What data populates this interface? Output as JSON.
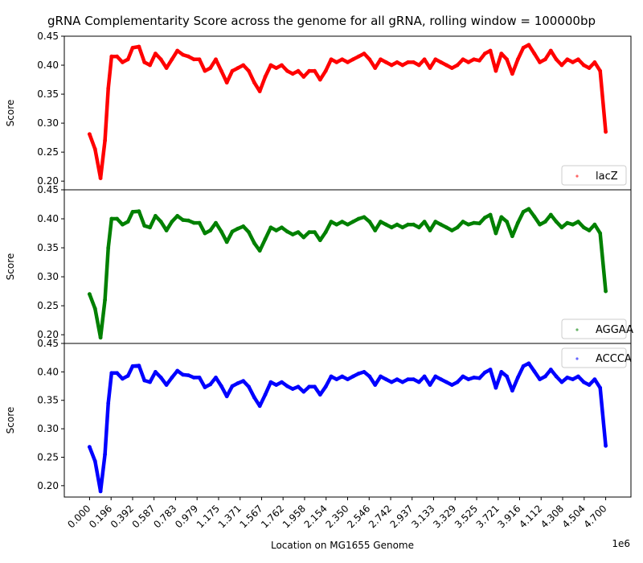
{
  "chart_data": {
    "type": "scatter",
    "title": "gRNA Complementarity Score across the genome for all gRNA, rolling window = 100000bp",
    "xlabel": "Location on MG1655 Genome",
    "x_offset_text": "1e6",
    "xlim": [
      -0.23,
      4.93
    ],
    "xticks": [
      0.0,
      0.196,
      0.392,
      0.587,
      0.783,
      0.979,
      1.175,
      1.371,
      1.567,
      1.762,
      1.958,
      2.154,
      2.35,
      2.546,
      2.742,
      2.937,
      3.133,
      3.329,
      3.525,
      3.721,
      3.916,
      4.112,
      4.308,
      4.504,
      4.7
    ],
    "xtick_labels": [
      "0.000",
      "0.196",
      "0.392",
      "0.587",
      "0.783",
      "0.979",
      "1.175",
      "1.371",
      "1.567",
      "1.762",
      "1.958",
      "2.154",
      "2.350",
      "2.546",
      "2.742",
      "2.937",
      "3.133",
      "3.329",
      "3.525",
      "3.721",
      "3.916",
      "4.112",
      "4.308",
      "4.504",
      "4.700"
    ],
    "grid": false,
    "panels": [
      {
        "ylabel": "Score",
        "ylim": [
          0.185,
          0.45
        ],
        "yticks": [
          0.2,
          0.25,
          0.3,
          0.35,
          0.4,
          0.45
        ],
        "ytick_labels": [
          "0.20",
          "0.25",
          "0.30",
          "0.35",
          "0.40",
          "0.45"
        ],
        "legend_loc": "lower-right",
        "series": [
          {
            "name": "lacZ",
            "color": "#ff0000",
            "x": [
              0.0,
              0.05,
              0.1,
              0.14,
              0.17,
              0.2,
              0.25,
              0.3,
              0.35,
              0.392,
              0.45,
              0.5,
              0.55,
              0.6,
              0.65,
              0.7,
              0.75,
              0.8,
              0.85,
              0.9,
              0.95,
              1.0,
              1.05,
              1.1,
              1.15,
              1.2,
              1.25,
              1.3,
              1.35,
              1.4,
              1.45,
              1.5,
              1.55,
              1.6,
              1.65,
              1.7,
              1.75,
              1.8,
              1.85,
              1.9,
              1.95,
              2.0,
              2.05,
              2.1,
              2.15,
              2.2,
              2.25,
              2.3,
              2.35,
              2.4,
              2.45,
              2.5,
              2.55,
              2.6,
              2.65,
              2.7,
              2.75,
              2.8,
              2.85,
              2.9,
              2.95,
              3.0,
              3.05,
              3.1,
              3.15,
              3.2,
              3.25,
              3.3,
              3.35,
              3.4,
              3.45,
              3.5,
              3.55,
              3.6,
              3.65,
              3.7,
              3.75,
              3.8,
              3.85,
              3.9,
              3.95,
              4.0,
              4.05,
              4.1,
              4.15,
              4.2,
              4.25,
              4.3,
              4.35,
              4.4,
              4.45,
              4.5,
              4.55,
              4.6,
              4.65,
              4.7
            ],
            "y": [
              0.281,
              0.255,
              0.205,
              0.27,
              0.36,
              0.415,
              0.415,
              0.405,
              0.41,
              0.43,
              0.432,
              0.405,
              0.4,
              0.42,
              0.41,
              0.395,
              0.41,
              0.425,
              0.418,
              0.415,
              0.41,
              0.41,
              0.39,
              0.395,
              0.41,
              0.39,
              0.37,
              0.39,
              0.395,
              0.4,
              0.39,
              0.37,
              0.355,
              0.38,
              0.4,
              0.395,
              0.4,
              0.39,
              0.385,
              0.39,
              0.38,
              0.39,
              0.39,
              0.375,
              0.39,
              0.41,
              0.405,
              0.41,
              0.405,
              0.41,
              0.415,
              0.42,
              0.41,
              0.395,
              0.41,
              0.405,
              0.4,
              0.405,
              0.4,
              0.405,
              0.405,
              0.4,
              0.41,
              0.395,
              0.41,
              0.405,
              0.4,
              0.395,
              0.4,
              0.41,
              0.405,
              0.41,
              0.408,
              0.42,
              0.425,
              0.39,
              0.42,
              0.41,
              0.385,
              0.41,
              0.43,
              0.435,
              0.42,
              0.405,
              0.41,
              0.425,
              0.41,
              0.4,
              0.41,
              0.405,
              0.41,
              0.4,
              0.395,
              0.405,
              0.39,
              0.285
            ]
          }
        ]
      },
      {
        "ylabel": "Score",
        "ylim": [
          0.185,
          0.45
        ],
        "yticks": [
          0.2,
          0.25,
          0.3,
          0.35,
          0.4,
          0.45
        ],
        "ytick_labels": [
          "0.20",
          "0.25",
          "0.30",
          "0.35",
          "0.40",
          "0.45"
        ],
        "legend_loc": "lower-right",
        "series": [
          {
            "name": "AGGAA",
            "color": "#008000",
            "x": [
              0.0,
              0.05,
              0.1,
              0.14,
              0.17,
              0.2,
              0.25,
              0.3,
              0.35,
              0.392,
              0.45,
              0.5,
              0.55,
              0.6,
              0.65,
              0.7,
              0.75,
              0.8,
              0.85,
              0.9,
              0.95,
              1.0,
              1.05,
              1.1,
              1.15,
              1.2,
              1.25,
              1.3,
              1.35,
              1.4,
              1.45,
              1.5,
              1.55,
              1.6,
              1.65,
              1.7,
              1.75,
              1.8,
              1.85,
              1.9,
              1.95,
              2.0,
              2.05,
              2.1,
              2.15,
              2.2,
              2.25,
              2.3,
              2.35,
              2.4,
              2.45,
              2.5,
              2.55,
              2.6,
              2.65,
              2.7,
              2.75,
              2.8,
              2.85,
              2.9,
              2.95,
              3.0,
              3.05,
              3.1,
              3.15,
              3.2,
              3.25,
              3.3,
              3.35,
              3.4,
              3.45,
              3.5,
              3.55,
              3.6,
              3.65,
              3.7,
              3.75,
              3.8,
              3.85,
              3.9,
              3.95,
              4.0,
              4.05,
              4.1,
              4.15,
              4.2,
              4.25,
              4.3,
              4.35,
              4.4,
              4.45,
              4.5,
              4.55,
              4.6,
              4.65,
              4.7
            ],
            "y": [
              0.27,
              0.245,
              0.195,
              0.26,
              0.35,
              0.4,
              0.4,
              0.39,
              0.395,
              0.412,
              0.413,
              0.388,
              0.385,
              0.405,
              0.395,
              0.38,
              0.395,
              0.405,
              0.398,
              0.397,
              0.393,
              0.393,
              0.375,
              0.38,
              0.393,
              0.378,
              0.36,
              0.378,
              0.383,
              0.387,
              0.377,
              0.358,
              0.345,
              0.365,
              0.385,
              0.38,
              0.385,
              0.378,
              0.373,
              0.377,
              0.368,
              0.377,
              0.377,
              0.363,
              0.377,
              0.395,
              0.39,
              0.395,
              0.39,
              0.395,
              0.4,
              0.403,
              0.395,
              0.38,
              0.395,
              0.39,
              0.385,
              0.39,
              0.385,
              0.39,
              0.39,
              0.385,
              0.395,
              0.38,
              0.395,
              0.39,
              0.385,
              0.38,
              0.385,
              0.395,
              0.39,
              0.393,
              0.392,
              0.402,
              0.407,
              0.375,
              0.403,
              0.395,
              0.37,
              0.393,
              0.412,
              0.417,
              0.404,
              0.39,
              0.395,
              0.407,
              0.395,
              0.385,
              0.393,
              0.39,
              0.395,
              0.385,
              0.38,
              0.39,
              0.375,
              0.275
            ]
          }
        ]
      },
      {
        "ylabel": "Score",
        "ylim": [
          0.18,
          0.45
        ],
        "yticks": [
          0.2,
          0.25,
          0.3,
          0.35,
          0.4,
          0.45
        ],
        "ytick_labels": [
          "0.20",
          "0.25",
          "0.30",
          "0.35",
          "0.40",
          "0.45"
        ],
        "legend_loc": "upper-right",
        "series": [
          {
            "name": "ACCCA",
            "color": "#0000ff",
            "x": [
              0.0,
              0.05,
              0.1,
              0.14,
              0.17,
              0.2,
              0.25,
              0.3,
              0.35,
              0.392,
              0.45,
              0.5,
              0.55,
              0.6,
              0.65,
              0.7,
              0.75,
              0.8,
              0.85,
              0.9,
              0.95,
              1.0,
              1.05,
              1.1,
              1.15,
              1.2,
              1.25,
              1.3,
              1.35,
              1.4,
              1.45,
              1.5,
              1.55,
              1.6,
              1.65,
              1.7,
              1.75,
              1.8,
              1.85,
              1.9,
              1.95,
              2.0,
              2.05,
              2.1,
              2.15,
              2.2,
              2.25,
              2.3,
              2.35,
              2.4,
              2.45,
              2.5,
              2.55,
              2.6,
              2.65,
              2.7,
              2.75,
              2.8,
              2.85,
              2.9,
              2.95,
              3.0,
              3.05,
              3.1,
              3.15,
              3.2,
              3.25,
              3.3,
              3.35,
              3.4,
              3.45,
              3.5,
              3.55,
              3.6,
              3.65,
              3.7,
              3.75,
              3.8,
              3.85,
              3.9,
              3.95,
              4.0,
              4.05,
              4.1,
              4.15,
              4.2,
              4.25,
              4.3,
              4.35,
              4.4,
              4.45,
              4.5,
              4.55,
              4.6,
              4.65,
              4.7
            ],
            "y": [
              0.268,
              0.243,
              0.19,
              0.255,
              0.345,
              0.398,
              0.398,
              0.388,
              0.393,
              0.41,
              0.411,
              0.385,
              0.382,
              0.4,
              0.39,
              0.377,
              0.39,
              0.402,
              0.395,
              0.394,
              0.39,
              0.39,
              0.373,
              0.378,
              0.39,
              0.375,
              0.357,
              0.375,
              0.38,
              0.384,
              0.374,
              0.355,
              0.34,
              0.36,
              0.382,
              0.377,
              0.382,
              0.375,
              0.37,
              0.374,
              0.365,
              0.374,
              0.374,
              0.36,
              0.374,
              0.392,
              0.387,
              0.392,
              0.387,
              0.392,
              0.397,
              0.4,
              0.392,
              0.377,
              0.392,
              0.387,
              0.382,
              0.387,
              0.382,
              0.387,
              0.387,
              0.382,
              0.392,
              0.377,
              0.392,
              0.387,
              0.382,
              0.377,
              0.382,
              0.392,
              0.387,
              0.39,
              0.389,
              0.399,
              0.404,
              0.372,
              0.4,
              0.392,
              0.367,
              0.39,
              0.41,
              0.415,
              0.401,
              0.387,
              0.392,
              0.404,
              0.392,
              0.382,
              0.39,
              0.387,
              0.392,
              0.382,
              0.377,
              0.387,
              0.372,
              0.27
            ]
          }
        ]
      }
    ]
  }
}
